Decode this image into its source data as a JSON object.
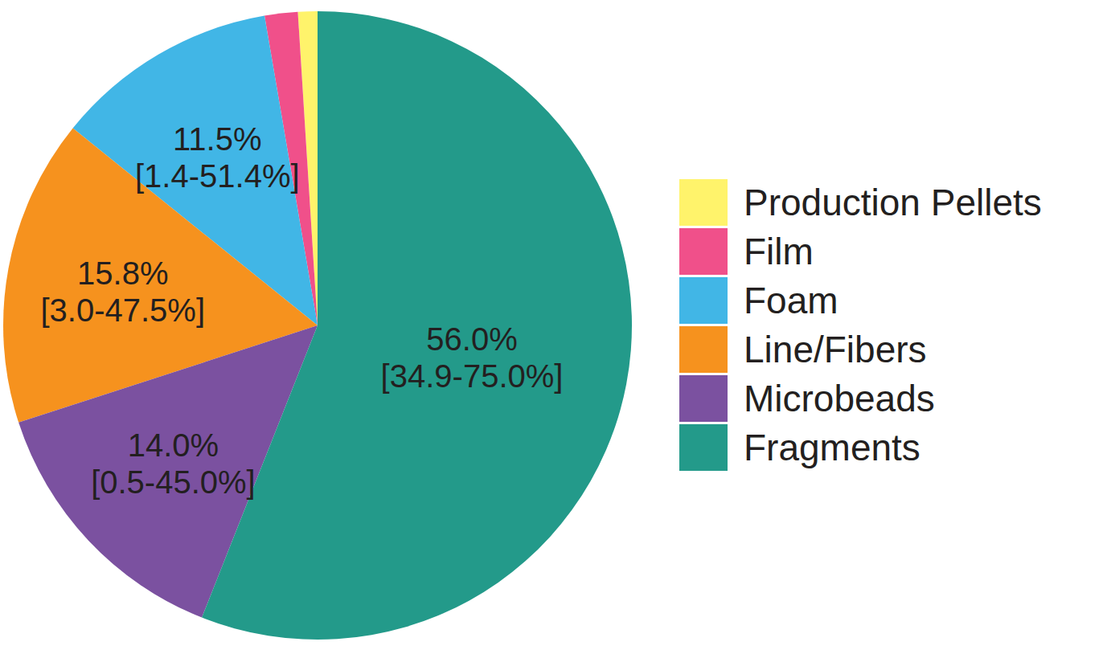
{
  "chart_data": {
    "type": "pie",
    "categories": [
      "Production Pellets",
      "Film",
      "Foam",
      "Line/Fibers",
      "Microbeads",
      "Fragments"
    ],
    "values": [
      1.0,
      1.7,
      11.5,
      15.8,
      14.0,
      56.0
    ],
    "value_labels": [
      null,
      null,
      "11.5%",
      "15.8%",
      "14.0%",
      "56.0%"
    ],
    "range_labels": [
      null,
      null,
      "[1.4-51.4%]",
      "[3.0-47.5%]",
      "[0.5-45.0%]",
      "[34.9-75.0%]"
    ],
    "colors": [
      "#fff36b",
      "#f0508a",
      "#41b6e6",
      "#f6921e",
      "#7b51a0",
      "#239a8a"
    ],
    "legend": "right",
    "data_labels": true
  }
}
